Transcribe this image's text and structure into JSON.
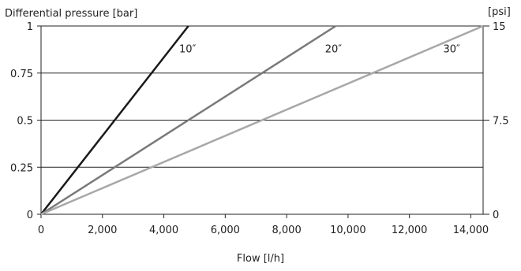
{
  "chart_data": {
    "type": "line",
    "xlabel": "Flow [l/h]",
    "ylabel": "Differential pressure [bar]",
    "y2label": "[psi]",
    "xlim": [
      0,
      14400
    ],
    "ylim": [
      0,
      1
    ],
    "y2lim": [
      0,
      15
    ],
    "x_ticks": [
      0,
      2000,
      4000,
      6000,
      8000,
      10000,
      12000,
      14000
    ],
    "x_tick_labels": [
      "0",
      "2,000",
      "4,000",
      "6,000",
      "8,000",
      "10,000",
      "12,000",
      "14,000"
    ],
    "y_ticks": [
      0,
      0.25,
      0.5,
      0.75,
      1
    ],
    "y_tick_labels": [
      "0",
      "0.25",
      "0.5",
      "0.75",
      "1"
    ],
    "y2_ticks": [
      0,
      7.5,
      15
    ],
    "y2_tick_labels": [
      "0",
      "7.5",
      "15"
    ],
    "grid": "horizontal",
    "series": [
      {
        "name": "10″",
        "color": "#1a1a1a",
        "points": [
          [
            0,
            0
          ],
          [
            4800,
            1
          ]
        ],
        "label_at": [
          4500,
          0.86
        ]
      },
      {
        "name": "20″",
        "color": "#7a7a7a",
        "points": [
          [
            0,
            0
          ],
          [
            9600,
            1
          ]
        ],
        "label_at": [
          9250,
          0.86
        ]
      },
      {
        "name": "30″",
        "color": "#a8a8a8",
        "points": [
          [
            0,
            0
          ],
          [
            14400,
            1
          ]
        ],
        "label_at": [
          13100,
          0.86
        ]
      }
    ]
  }
}
